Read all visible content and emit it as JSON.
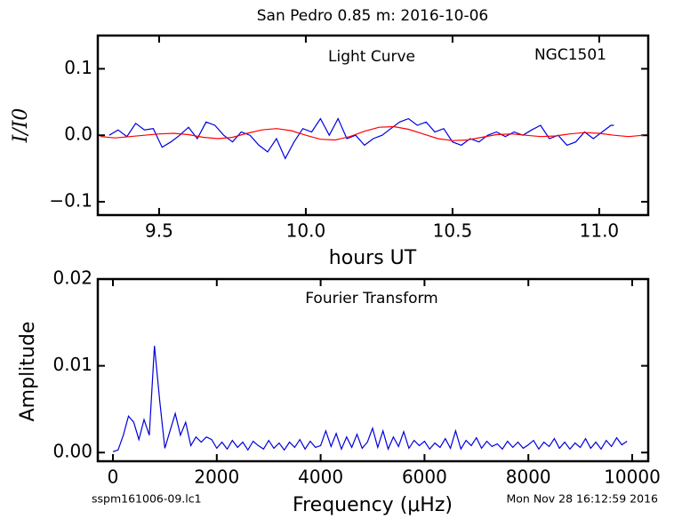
{
  "chart_data": [
    {
      "type": "line",
      "title": "San Pedro 0.85 m:  2016-10-06",
      "xlabel": "hours UT",
      "ylabel": "I/I0",
      "annotations": [
        "Light Curve",
        "NGC1501"
      ],
      "xlim": [
        9.291,
        11.167
      ],
      "ylim": [
        -0.12,
        0.15
      ],
      "xticks": [
        9.5,
        {
          "value": 10,
          "label": "10.0"
        },
        10.5,
        {
          "value": 11,
          "label": "11.0"
        }
      ],
      "yticks": [
        {
          "value": -0.1,
          "label": "−0.1"
        },
        {
          "value": 0,
          "label": "0.0"
        },
        0.1
      ],
      "series": [
        {
          "color": "#0000dd",
          "x": [
            9.33,
            9.36,
            9.39,
            9.42,
            9.45,
            9.48,
            9.51,
            9.54,
            9.57,
            9.6,
            9.63,
            9.66,
            9.69,
            9.72,
            9.75,
            9.78,
            9.81,
            9.84,
            9.87,
            9.9,
            9.93,
            9.96,
            9.99,
            10.02,
            10.05,
            10.08,
            10.11,
            10.14,
            10.17,
            10.2,
            10.23,
            10.26,
            10.29,
            10.32,
            10.35,
            10.38,
            10.41,
            10.44,
            10.47,
            10.5,
            10.53,
            10.56,
            10.59,
            10.62,
            10.65,
            10.68,
            10.71,
            10.74,
            10.77,
            10.8,
            10.83,
            10.86,
            10.89,
            10.92,
            10.95,
            10.98,
            11.01,
            11.04,
            11.05
          ],
          "values": [
            0,
            0.008,
            -0.002,
            0.018,
            0.008,
            0.01,
            -0.018,
            -0.01,
            0,
            0.012,
            -0.005,
            0.02,
            0.015,
            0,
            -0.01,
            0.005,
            0,
            -0.015,
            -0.025,
            -0.005,
            -0.035,
            -0.01,
            0.01,
            0.005,
            0.025,
            0,
            0.025,
            -0.005,
            0,
            -0.015,
            -0.005,
            0,
            0.01,
            0.02,
            0.025,
            0.015,
            0.02,
            0.005,
            0.01,
            -0.01,
            -0.015,
            -0.005,
            -0.01,
            0,
            0.005,
            -0.002,
            0.005,
            0,
            0.008,
            0.015,
            -0.005,
            0,
            -0.015,
            -0.01,
            0.005,
            -0.005,
            0.005,
            0.015,
            0.015
          ]
        },
        {
          "color": "#ff0000",
          "x": [
            9.3,
            9.35,
            9.4,
            9.45,
            9.5,
            9.55,
            9.6,
            9.65,
            9.7,
            9.75,
            9.8,
            9.85,
            9.9,
            9.95,
            10,
            10.05,
            10.1,
            10.15,
            10.2,
            10.25,
            10.3,
            10.35,
            10.4,
            10.45,
            10.5,
            10.55,
            10.6,
            10.65,
            10.7,
            10.75,
            10.8,
            10.85,
            10.9,
            10.95,
            11,
            11.05,
            11.1,
            11.15
          ],
          "values": [
            -0.002,
            -0.004,
            -0.002,
            0,
            0.002,
            0.003,
            0.001,
            -0.003,
            -0.005,
            -0.003,
            0.003,
            0.008,
            0.01,
            0.007,
            0,
            -0.006,
            -0.007,
            -0.002,
            0.006,
            0.012,
            0.013,
            0.009,
            0.002,
            -0.005,
            -0.008,
            -0.007,
            -0.003,
            0.001,
            0.002,
            0,
            -0.002,
            -0.001,
            0.002,
            0.004,
            0.003,
            0,
            -0.002,
            0
          ]
        }
      ]
    },
    {
      "type": "line",
      "xlabel": "Frequency (μHz)",
      "ylabel": "Amplitude",
      "annotations": [
        "Fourier Transform"
      ],
      "xlim": [
        -291,
        10308
      ],
      "ylim": [
        -0.001,
        0.02
      ],
      "xticks": [
        0,
        2000,
        4000,
        6000,
        8000,
        10000
      ],
      "yticks": [
        {
          "value": 0,
          "label": "0.00"
        },
        {
          "value": 0.01,
          "label": "0.01"
        },
        {
          "value": 0.02,
          "label": "0.02"
        }
      ],
      "series": [
        {
          "color": "#0000dd",
          "x": [
            0,
            100,
            200,
            300,
            400,
            500,
            600,
            700,
            800,
            900,
            1000,
            1100,
            1200,
            1300,
            1400,
            1500,
            1600,
            1700,
            1800,
            1900,
            2000,
            2100,
            2200,
            2300,
            2400,
            2500,
            2600,
            2700,
            2800,
            2900,
            3000,
            3100,
            3200,
            3300,
            3400,
            3500,
            3600,
            3700,
            3800,
            3900,
            4000,
            4100,
            4200,
            4300,
            4400,
            4500,
            4600,
            4700,
            4800,
            4900,
            5000,
            5100,
            5200,
            5300,
            5400,
            5500,
            5600,
            5700,
            5800,
            5900,
            6000,
            6100,
            6200,
            6300,
            6400,
            6500,
            6600,
            6700,
            6800,
            6900,
            7000,
            7100,
            7200,
            7300,
            7400,
            7500,
            7600,
            7700,
            7800,
            7900,
            8000,
            8100,
            8200,
            8300,
            8400,
            8500,
            8600,
            8700,
            8800,
            8900,
            9000,
            9100,
            9200,
            9300,
            9400,
            9500,
            9600,
            9700,
            9800,
            9900
          ],
          "values": [
            0.0001,
            0.0003,
            0.002,
            0.0042,
            0.0035,
            0.0015,
            0.0038,
            0.002,
            0.0123,
            0.006,
            0.0005,
            0.0025,
            0.0045,
            0.002,
            0.0035,
            0.0008,
            0.0018,
            0.0012,
            0.0018,
            0.0015,
            0.0005,
            0.0012,
            0.0004,
            0.0014,
            0.0006,
            0.0012,
            0.0003,
            0.0013,
            0.0008,
            0.0004,
            0.0014,
            0.0005,
            0.0011,
            0.0003,
            0.0012,
            0.0006,
            0.0015,
            0.0004,
            0.0013,
            0.0006,
            0.0008,
            0.0025,
            0.0007,
            0.0022,
            0.0004,
            0.0018,
            0.0006,
            0.0021,
            0.0005,
            0.0012,
            0.0028,
            0.0006,
            0.0025,
            0.0004,
            0.0018,
            0.0007,
            0.0024,
            0.0005,
            0.0014,
            0.0008,
            0.0013,
            0.0004,
            0.0011,
            0.0006,
            0.0016,
            0.0005,
            0.0025,
            0.0004,
            0.0014,
            0.0008,
            0.0017,
            0.0005,
            0.0013,
            0.0007,
            0.001,
            0.0004,
            0.0013,
            0.0006,
            0.0012,
            0.0005,
            0.0009,
            0.0014,
            0.0004,
            0.0012,
            0.0007,
            0.0016,
            0.0005,
            0.0012,
            0.0004,
            0.0011,
            0.0006,
            0.0016,
            0.0005,
            0.0012,
            0.0004,
            0.0014,
            0.0007,
            0.0017,
            0.0009,
            0.0013
          ]
        }
      ]
    }
  ],
  "footer": {
    "left": "sspm161006-09.lc1",
    "right": "Mon Nov 28 16:12:59 2016"
  }
}
